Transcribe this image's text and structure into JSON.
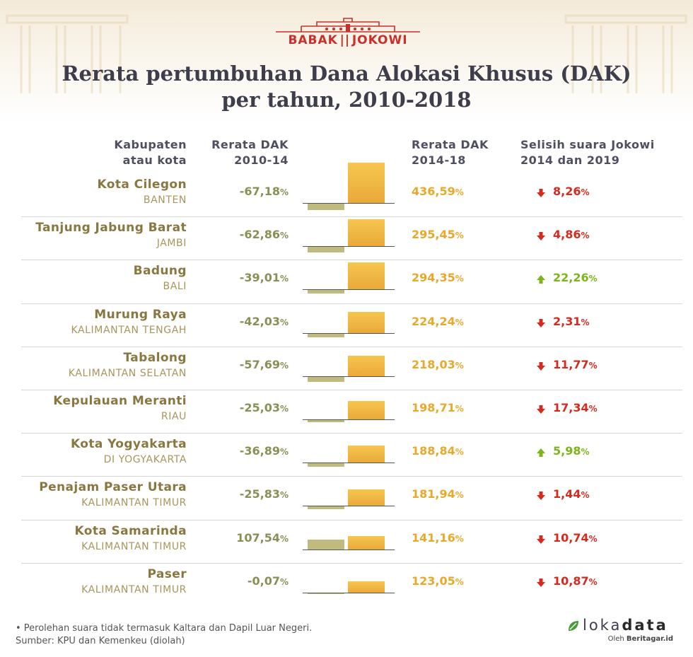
{
  "brand": {
    "left": "BABAK",
    "right": "JOKOWI"
  },
  "title": {
    "line1": "Rerata pertumbuhan Dana Alokasi Khusus (DAK)",
    "line2": "per tahun, 2010-2018"
  },
  "headers": {
    "name_l1": "Kabupaten",
    "name_l2": "atau kota",
    "v1_l1": "Rerata DAK",
    "v1_l2": "2010-14",
    "v2_l1": "Rerata DAK",
    "v2_l2": "2014-18",
    "v3_l1": "Selisih suara Jokowi",
    "v3_l2": "2014 dan 2019"
  },
  "colors": {
    "negative_bar": "#bfbb7e",
    "positive_bar": "#f0b33e",
    "up": "#7cb518",
    "down": "#d62a1e"
  },
  "chart_data": {
    "type": "table",
    "columns": [
      "Kabupaten atau kota",
      "Rerata DAK 2010-14",
      "Rerata DAK 2014-18",
      "Selisih suara Jokowi 2014 dan 2019"
    ],
    "rows": [
      {
        "city": "Kota Cilegon",
        "province": "BANTEN",
        "dak_2010_14": -67.18,
        "dak_2010_14_label": "-67,18",
        "dak_2014_18": 436.59,
        "dak_2014_18_label": "436,59",
        "vote_change": -8.26,
        "vote_label": "8,26",
        "direction": "down"
      },
      {
        "city": "Tanjung Jabung Barat",
        "province": "JAMBI",
        "dak_2010_14": -62.86,
        "dak_2010_14_label": "-62,86",
        "dak_2014_18": 295.45,
        "dak_2014_18_label": "295,45",
        "vote_change": -4.86,
        "vote_label": "4,86",
        "direction": "down"
      },
      {
        "city": "Badung",
        "province": "BALI",
        "dak_2010_14": -39.01,
        "dak_2010_14_label": "-39,01",
        "dak_2014_18": 294.35,
        "dak_2014_18_label": "294,35",
        "vote_change": 22.26,
        "vote_label": "22,26",
        "direction": "up"
      },
      {
        "city": "Murung Raya",
        "province": "KALIMANTAN TENGAH",
        "dak_2010_14": -42.03,
        "dak_2010_14_label": "-42,03",
        "dak_2014_18": 224.24,
        "dak_2014_18_label": "224,24",
        "vote_change": -2.31,
        "vote_label": "2,31",
        "direction": "down"
      },
      {
        "city": "Tabalong",
        "province": "KALIMANTAN SELATAN",
        "dak_2010_14": -57.69,
        "dak_2010_14_label": "-57,69",
        "dak_2014_18": 218.03,
        "dak_2014_18_label": "218,03",
        "vote_change": -11.77,
        "vote_label": "11,77",
        "direction": "down"
      },
      {
        "city": "Kepulauan Meranti",
        "province": "RIAU",
        "dak_2010_14": -25.03,
        "dak_2010_14_label": "-25,03",
        "dak_2014_18": 198.71,
        "dak_2014_18_label": "198,71",
        "vote_change": -17.34,
        "vote_label": "17,34",
        "direction": "down"
      },
      {
        "city": "Kota Yogyakarta",
        "province": "DI YOGYAKARTA",
        "dak_2010_14": -36.89,
        "dak_2010_14_label": "-36,89",
        "dak_2014_18": 188.84,
        "dak_2014_18_label": "188,84",
        "vote_change": 5.98,
        "vote_label": "5,98",
        "direction": "up"
      },
      {
        "city": "Penajam Paser Utara",
        "province": "KALIMANTAN TIMUR",
        "dak_2010_14": -25.83,
        "dak_2010_14_label": "-25,83",
        "dak_2014_18": 181.94,
        "dak_2014_18_label": "181,94",
        "vote_change": -1.44,
        "vote_label": "1,44",
        "direction": "down"
      },
      {
        "city": "Kota Samarinda",
        "province": "KALIMANTAN TIMUR",
        "dak_2010_14": 107.54,
        "dak_2010_14_label": "107,54",
        "dak_2014_18": 141.16,
        "dak_2014_18_label": "141,16",
        "vote_change": -10.74,
        "vote_label": "10,74",
        "direction": "down"
      },
      {
        "city": "Paser",
        "province": "KALIMANTAN TIMUR",
        "dak_2010_14": -0.07,
        "dak_2010_14_label": "-0,07",
        "dak_2014_18": 123.05,
        "dak_2014_18_label": "123,05",
        "vote_change": -10.87,
        "vote_label": "10,87",
        "direction": "down"
      }
    ],
    "unit": "%"
  },
  "footnote": {
    "line1": "• Perolehan suara tidak termasuk Kaltara dan Dapil Luar Negeri.",
    "line2": "Sumber: KPU dan Kemenkeu (diolah)"
  },
  "logo": {
    "word_light": "loka",
    "word_bold": "data",
    "sub_prefix": "Oleh ",
    "sub_bold": "Beritagar.id"
  }
}
